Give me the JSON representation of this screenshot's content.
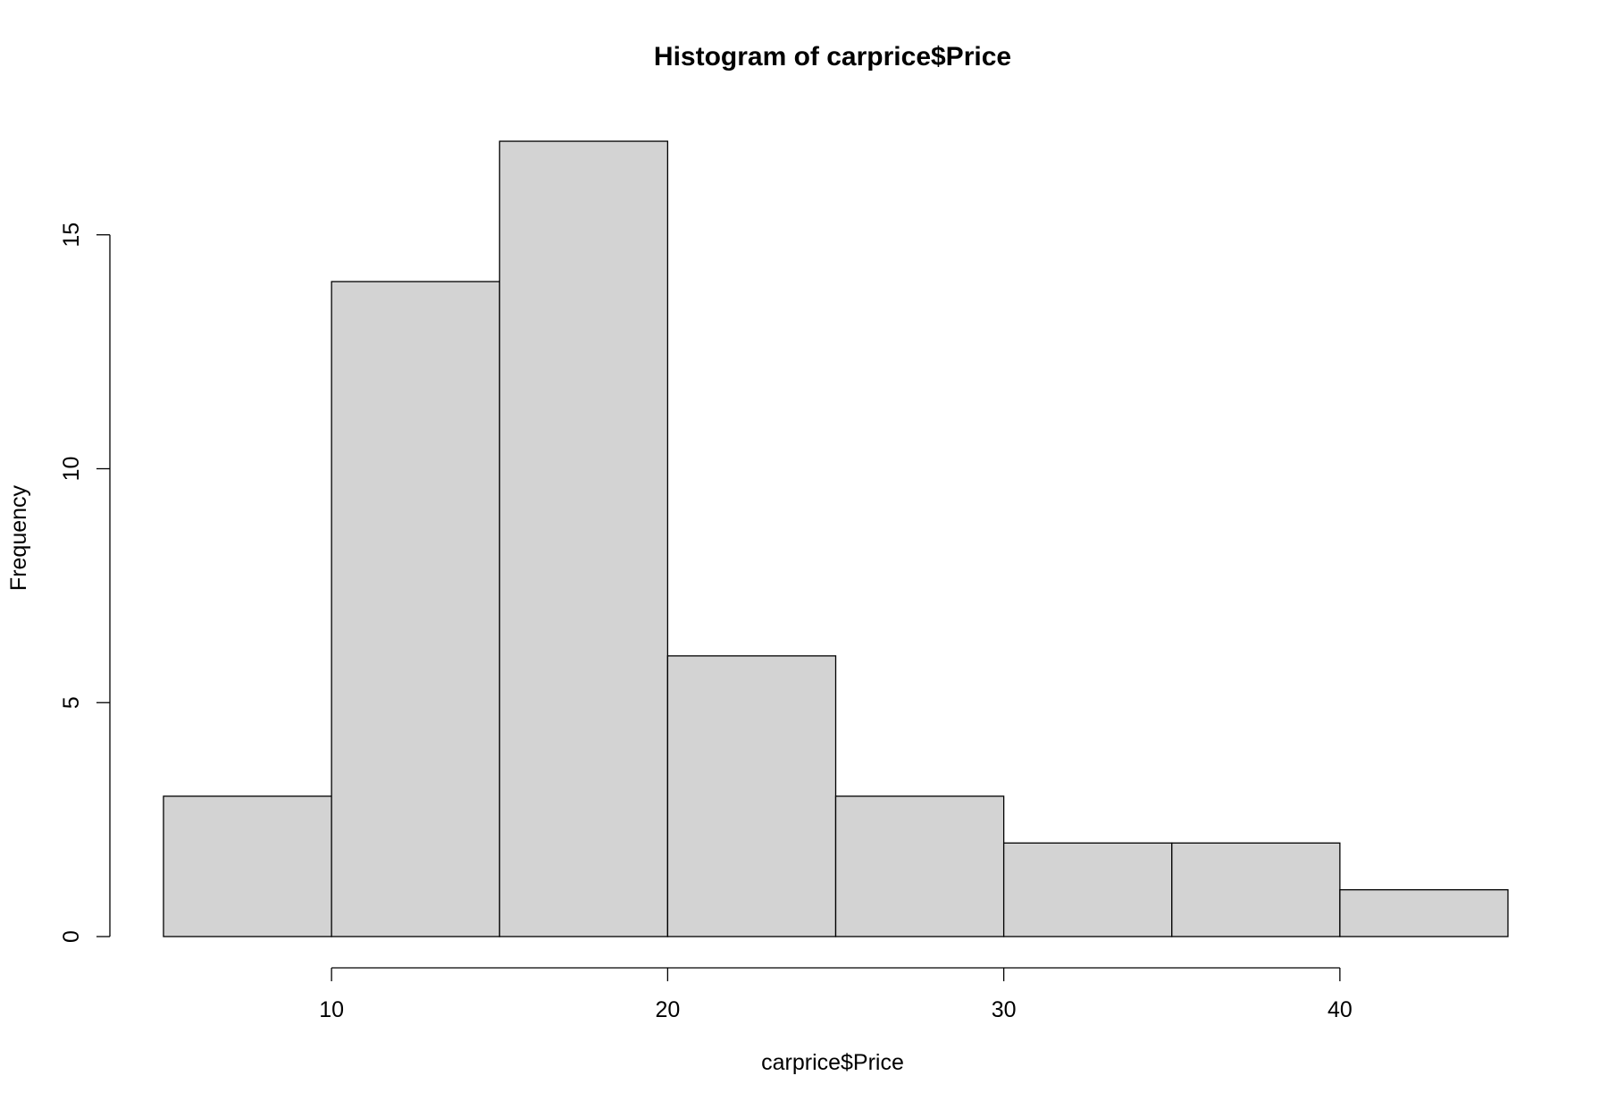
{
  "chart_data": {
    "type": "bar",
    "histogram": true,
    "title": "Histogram of carprice$Price",
    "xlabel": "carprice$Price",
    "ylabel": "Frequency",
    "bins": [
      {
        "from": 5,
        "to": 10,
        "count": 3
      },
      {
        "from": 10,
        "to": 15,
        "count": 14
      },
      {
        "from": 15,
        "to": 20,
        "count": 17
      },
      {
        "from": 20,
        "to": 25,
        "count": 6
      },
      {
        "from": 25,
        "to": 30,
        "count": 3
      },
      {
        "from": 30,
        "to": 35,
        "count": 2
      },
      {
        "from": 35,
        "to": 40,
        "count": 2
      },
      {
        "from": 40,
        "to": 45,
        "count": 1
      }
    ],
    "xticks": [
      10,
      20,
      30,
      40
    ],
    "yticks": [
      0,
      5,
      10,
      15
    ],
    "xlim": [
      5,
      45
    ],
    "ylim": [
      0,
      17
    ],
    "grid": false,
    "colors": {
      "bar_fill": "#d3d3d3",
      "bar_border": "#000000",
      "background": "#ffffff"
    }
  }
}
